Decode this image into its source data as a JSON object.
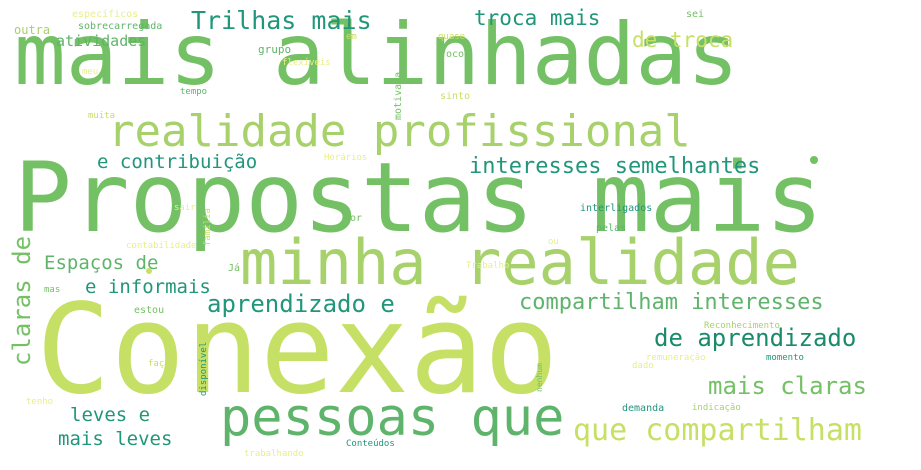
{
  "palette": {
    "dark_green": "#1a8a6a",
    "teal": "#21967a",
    "mid_green": "#5fb46b",
    "green": "#74c065",
    "lime": "#a7d16a",
    "yellow_green": "#c6e066",
    "pale": "#e9ef86"
  },
  "words": {
    "mais_alinhadas": "mais alinhadas",
    "propostas_mais": "Propostas mais",
    "conexao": "Conexão",
    "minha_realidade": "minha realidade",
    "realidade_profissional": "realidade profissional",
    "pessoas_que": "pessoas que",
    "que_compartilham": "que compartilham",
    "compartilham_interesses": "compartilham interesses",
    "trilhas_mais": "Trilhas mais",
    "troca_mais": "troca mais",
    "de_troca": "de troca",
    "interesses_semelhantes": "interesses semelhantes",
    "e_contribuicao": "e contribuição",
    "espacos_de": "Espaços de",
    "e_informais": "e informais",
    "aprendizado_e": "aprendizado e",
    "de_aprendizado": "de aprendizado",
    "mais_claras": "mais claras",
    "claras_de": "claras de",
    "leves_e": "leves e",
    "mais_leves": "mais leves",
    "atividades": "atividades",
    "outra": "outra",
    "especificos": "específicos",
    "sobrecarregada": "sobrecarregada",
    "em": "em",
    "grupo": "grupo",
    "flexiveis": "flexíveis",
    "quase": "quase",
    "focos": "focos",
    "sei": "sei",
    "meu": "meu",
    "tempo": "tempo",
    "motivada": "motivada",
    "sinto": "sinto",
    "muita": "muita",
    "horarios": "Horários",
    "interligados": "interligados",
    "pelas": "pelas",
    "por": "por",
    "familia": "família",
    "sair": "sair",
    "contabilidade": "contabilidade",
    "ou": "ou",
    "ja": "Já",
    "trabalho": "Trabalho",
    "mas": "mas",
    "estou": "estou",
    "reconhecimento": "Reconhecimento",
    "faco": "faço",
    "disponivel": "disponível",
    "nenhum": "nenhum",
    "remuneracao": "remuneração",
    "momento": "momento",
    "dado": "dado",
    "tenho": "tenho",
    "demanda": "demanda",
    "indicacao": "indicação",
    "conteudos": "Conteúdos",
    "trabalhando": "trabalhando"
  }
}
